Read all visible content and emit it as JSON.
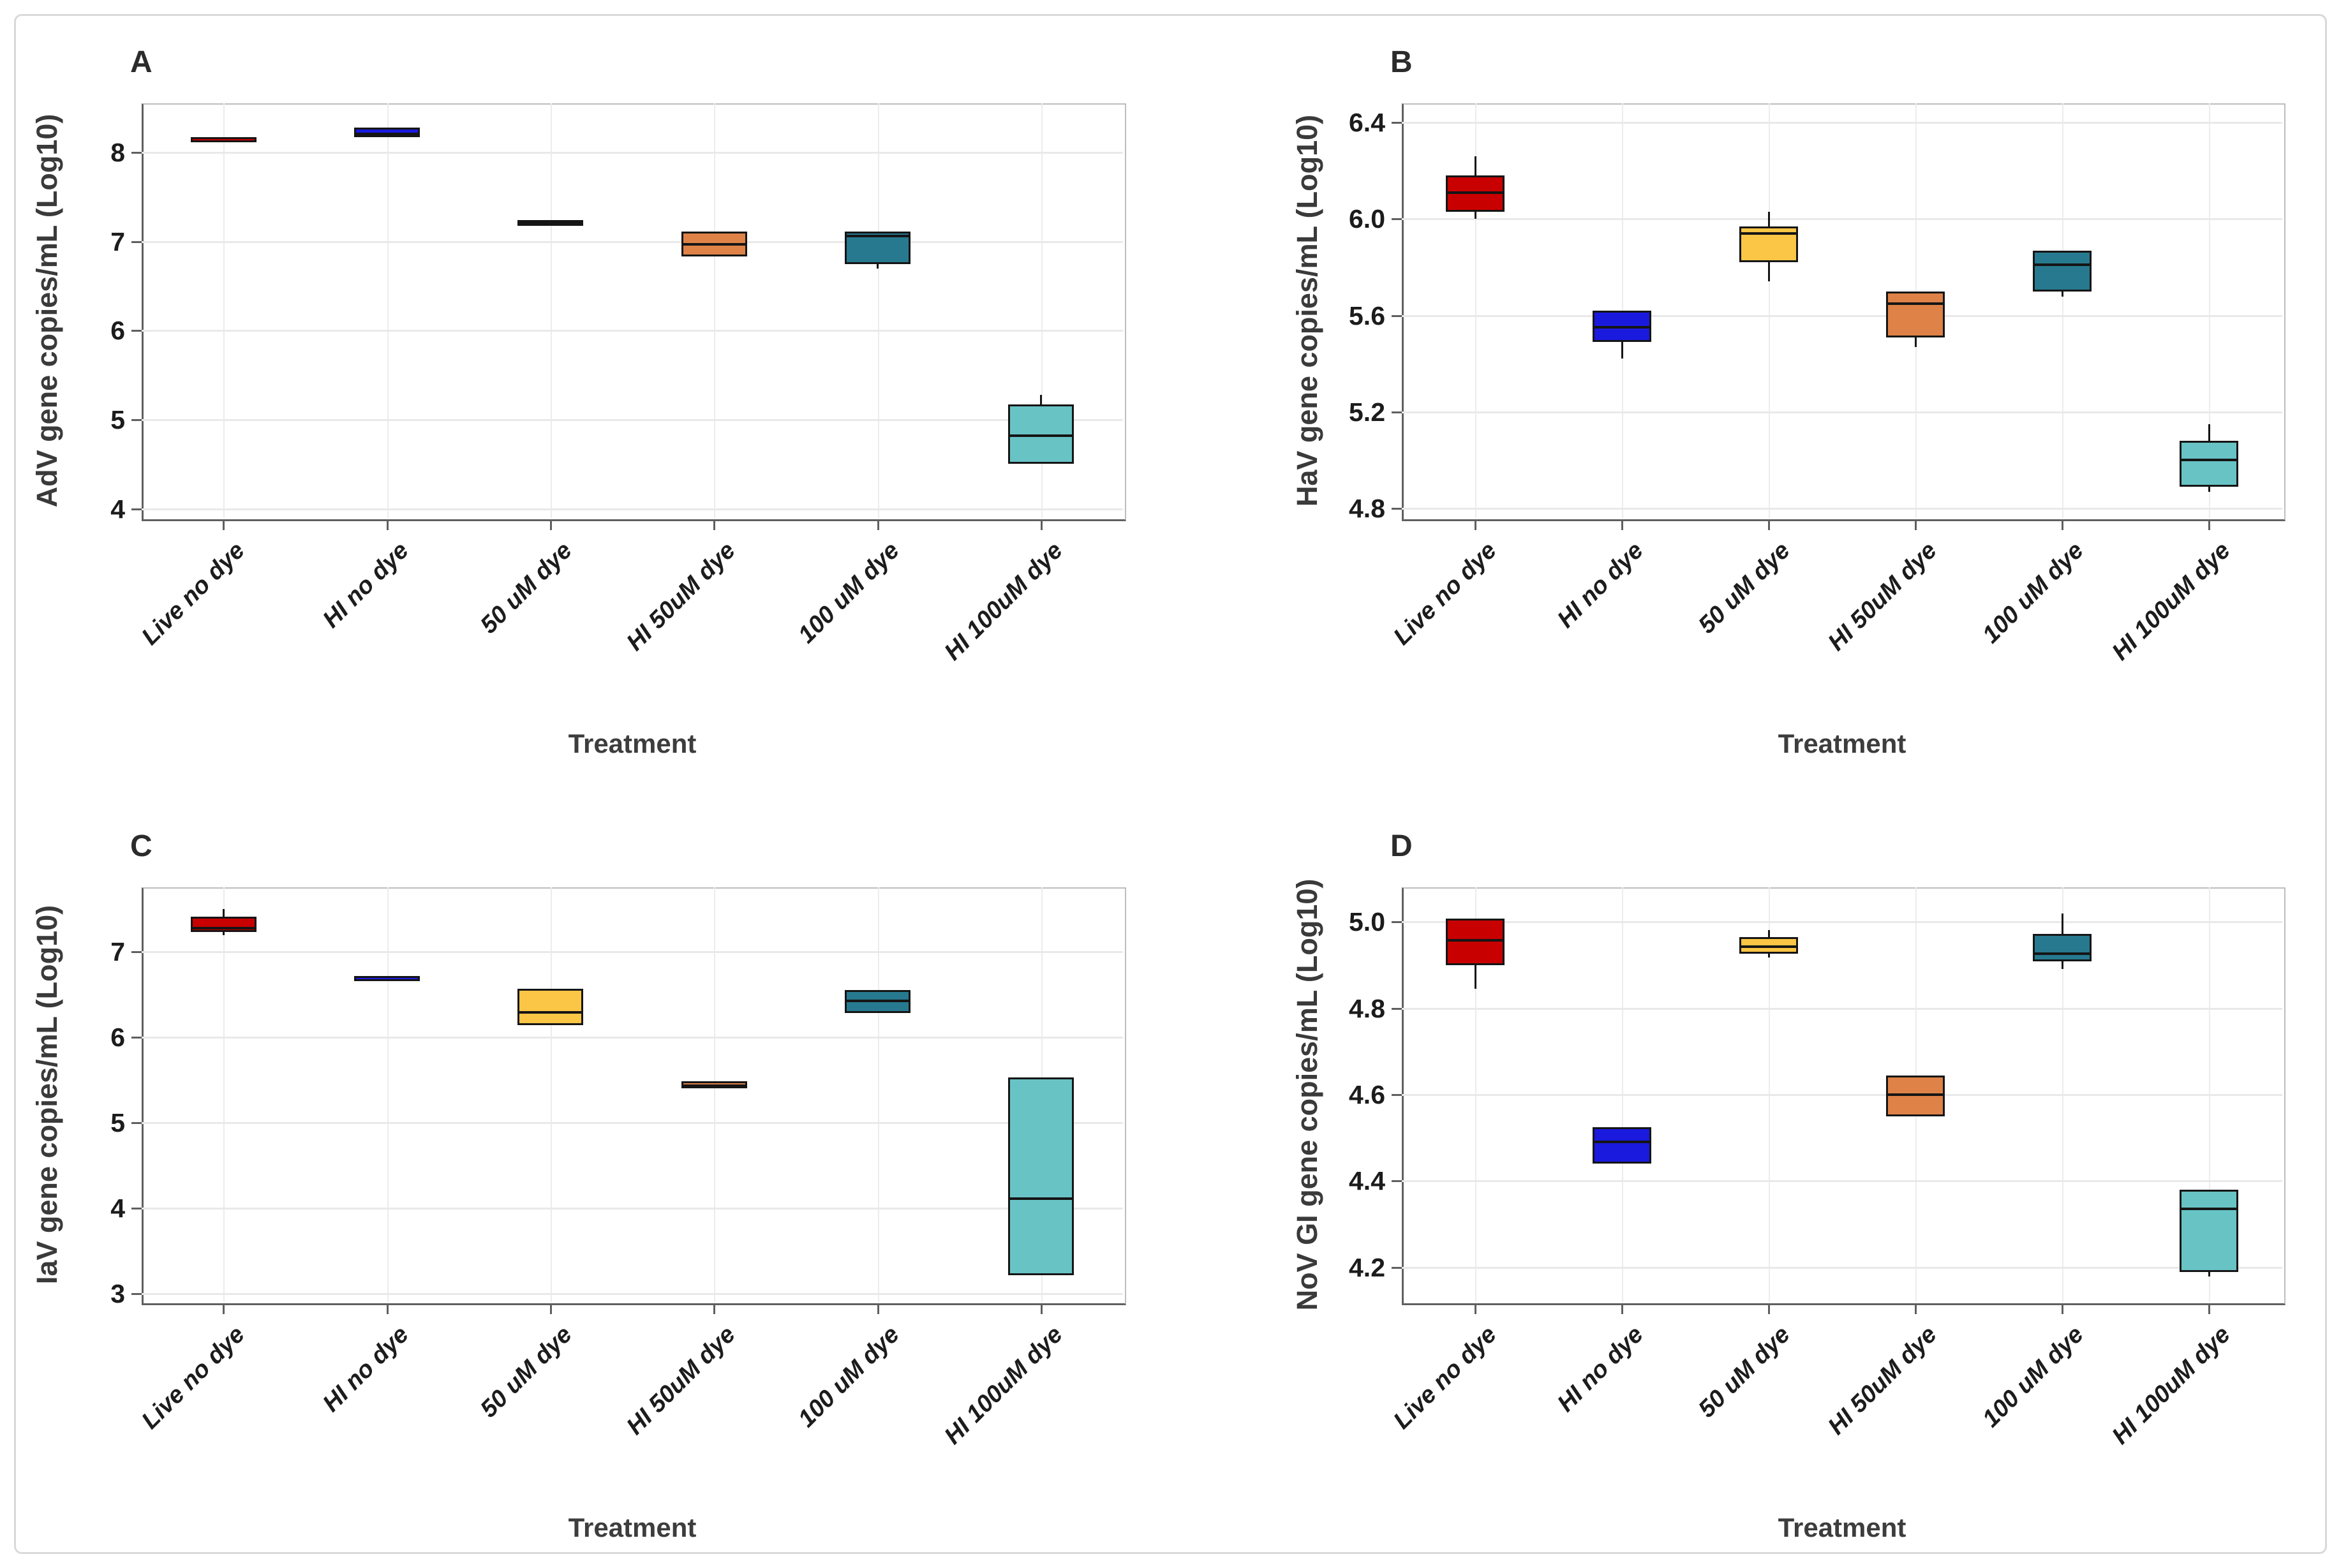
{
  "figure": {
    "border_color": "#d9d9d9",
    "background": "#ffffff"
  },
  "treatments": [
    "Live no dye",
    "HI no dye",
    "50 uM dye",
    "HI 50uM dye",
    "100 uM dye",
    "HI 100uM dye"
  ],
  "colors": {
    "live_no_dye": "#C80000",
    "hi_no_dye": "#1A1ADF",
    "dye_50um": "#FBC545",
    "hi_50um_dye": "#DE8248",
    "dye_100um": "#27798F",
    "hi_100um_dye": "#68C3C5",
    "box_stroke": "#151515",
    "gridline": "#e9e9e9",
    "axis_line": "#5f5f5f"
  },
  "chart_data": [
    {
      "type": "box",
      "panel": "A",
      "ylabel": "AdV gene copies/mL (Log10)",
      "xlabel": "Treatment",
      "ylim": [
        3.9,
        8.55
      ],
      "yticks": [
        8,
        7,
        6,
        5,
        4
      ],
      "ytick_labels": [
        "8",
        "7",
        "6",
        "5",
        "4"
      ],
      "grid": true,
      "categories": [
        "Live no dye",
        "HI no dye",
        "50 uM dye",
        "HI 50uM dye",
        "100 uM dye",
        "HI 100uM dye"
      ],
      "boxes": [
        {
          "category": "Live no dye",
          "color": "#C80000",
          "whisker_low": null,
          "q1": 8.13,
          "median": 8.15,
          "q3": 8.17,
          "whisker_high": null
        },
        {
          "category": "HI no dye",
          "color": "#1A1ADF",
          "whisker_low": null,
          "q1": 8.17,
          "median": 8.21,
          "q3": 8.28,
          "whisker_high": null
        },
        {
          "category": "50 uM dye",
          "color": "#FBC545",
          "whisker_low": null,
          "q1": 7.18,
          "median": 7.21,
          "q3": 7.24,
          "whisker_high": null
        },
        {
          "category": "HI 50uM dye",
          "color": "#DE8248",
          "whisker_low": null,
          "q1": 6.83,
          "median": 6.97,
          "q3": 7.11,
          "whisker_high": null
        },
        {
          "category": "100 uM dye",
          "color": "#27798F",
          "whisker_low": 6.7,
          "q1": 6.75,
          "median": 7.06,
          "q3": 7.11,
          "whisker_high": null
        },
        {
          "category": "HI 100uM dye",
          "color": "#68C3C5",
          "whisker_low": null,
          "q1": 4.51,
          "median": 4.82,
          "q3": 5.17,
          "whisker_high": 5.28
        }
      ]
    },
    {
      "type": "box",
      "panel": "B",
      "ylabel": "HaV gene copies/mL (Log10)",
      "xlabel": "Treatment",
      "ylim": [
        4.76,
        6.48
      ],
      "yticks": [
        6.4,
        6.0,
        5.6,
        5.2,
        4.8
      ],
      "ytick_labels": [
        "6.4",
        "6.0",
        "5.6",
        "5.2",
        "4.8"
      ],
      "grid": true,
      "categories": [
        "Live no dye",
        "HI no dye",
        "50 uM dye",
        "HI 50uM dye",
        "100 uM dye",
        "HI 100uM dye"
      ],
      "boxes": [
        {
          "category": "Live no dye",
          "color": "#C80000",
          "whisker_low": 6.0,
          "q1": 6.03,
          "median": 6.11,
          "q3": 6.18,
          "whisker_high": 6.26
        },
        {
          "category": "HI no dye",
          "color": "#1A1ADF",
          "whisker_low": 5.42,
          "q1": 5.49,
          "median": 5.55,
          "q3": 5.62,
          "whisker_high": null
        },
        {
          "category": "50 uM dye",
          "color": "#FBC545",
          "whisker_low": 5.74,
          "q1": 5.82,
          "median": 5.94,
          "q3": 5.97,
          "whisker_high": 6.03
        },
        {
          "category": "HI 50uM dye",
          "color": "#DE8248",
          "whisker_low": 5.47,
          "q1": 5.51,
          "median": 5.65,
          "q3": 5.7,
          "whisker_high": null
        },
        {
          "category": "100 uM dye",
          "color": "#27798F",
          "whisker_low": 5.68,
          "q1": 5.7,
          "median": 5.81,
          "q3": 5.87,
          "whisker_high": null
        },
        {
          "category": "HI 100uM dye",
          "color": "#68C3C5",
          "whisker_low": 4.87,
          "q1": 4.89,
          "median": 5.0,
          "q3": 5.08,
          "whisker_high": 5.15
        }
      ]
    },
    {
      "type": "box",
      "panel": "C",
      "ylabel": "IaV gene copies/mL (Log10)",
      "xlabel": "Treatment",
      "ylim": [
        2.9,
        7.75
      ],
      "yticks": [
        7,
        6,
        5,
        4,
        3
      ],
      "ytick_labels": [
        "7",
        "6",
        "5",
        "4",
        "3"
      ],
      "grid": true,
      "categories": [
        "Live no dye",
        "HI no dye",
        "50 uM dye",
        "HI 50uM dye",
        "100 uM dye",
        "HI 100uM dye"
      ],
      "boxes": [
        {
          "category": "Live no dye",
          "color": "#C80000",
          "whisker_low": 7.19,
          "q1": 7.23,
          "median": 7.27,
          "q3": 7.41,
          "whisker_high": 7.5
        },
        {
          "category": "HI no dye",
          "color": "#1A1ADF",
          "whisker_low": null,
          "q1": 6.66,
          "median": 6.68,
          "q3": 6.71,
          "whisker_high": null
        },
        {
          "category": "50 uM dye",
          "color": "#FBC545",
          "whisker_low": null,
          "q1": 6.14,
          "median": 6.29,
          "q3": 6.56,
          "whisker_high": null
        },
        {
          "category": "HI 50uM dye",
          "color": "#DE8248",
          "whisker_low": null,
          "q1": 5.4,
          "median": 5.43,
          "q3": 5.48,
          "whisker_high": null
        },
        {
          "category": "100 uM dye",
          "color": "#27798F",
          "whisker_low": null,
          "q1": 6.28,
          "median": 6.42,
          "q3": 6.55,
          "whisker_high": null
        },
        {
          "category": "HI 100uM dye",
          "color": "#68C3C5",
          "whisker_low": null,
          "q1": 3.21,
          "median": 4.11,
          "q3": 5.53,
          "whisker_high": null
        }
      ]
    },
    {
      "type": "box",
      "panel": "D",
      "ylabel": "NoV GI gene copies/mL (Log10)",
      "xlabel": "Treatment",
      "ylim": [
        4.12,
        5.08
      ],
      "yticks": [
        5.0,
        4.8,
        4.6,
        4.4,
        4.2
      ],
      "ytick_labels": [
        "5.0",
        "4.8",
        "4.6",
        "4.4",
        "4.2"
      ],
      "grid": true,
      "categories": [
        "Live no dye",
        "HI no dye",
        "50 uM dye",
        "HI 50uM dye",
        "100 uM dye",
        "HI 100uM dye"
      ],
      "boxes": [
        {
          "category": "Live no dye",
          "color": "#C80000",
          "whisker_low": 4.845,
          "q1": 4.9,
          "median": 4.958,
          "q3": 5.008,
          "whisker_high": null
        },
        {
          "category": "HI no dye",
          "color": "#1A1ADF",
          "whisker_low": null,
          "q1": 4.44,
          "median": 4.49,
          "q3": 4.525,
          "whisker_high": null
        },
        {
          "category": "50 uM dye",
          "color": "#FBC545",
          "whisker_low": 4.917,
          "q1": 4.926,
          "median": 4.943,
          "q3": 4.965,
          "whisker_high": 4.981
        },
        {
          "category": "HI 50uM dye",
          "color": "#DE8248",
          "whisker_low": null,
          "q1": 4.55,
          "median": 4.6,
          "q3": 4.645,
          "whisker_high": null
        },
        {
          "category": "100 uM dye",
          "color": "#27798F",
          "whisker_low": 4.89,
          "q1": 4.908,
          "median": 4.927,
          "q3": 4.972,
          "whisker_high": 5.02
        },
        {
          "category": "HI 100uM dye",
          "color": "#68C3C5",
          "whisker_low": 4.18,
          "q1": 4.19,
          "median": 4.335,
          "q3": 4.38,
          "whisker_high": null
        }
      ]
    }
  ]
}
